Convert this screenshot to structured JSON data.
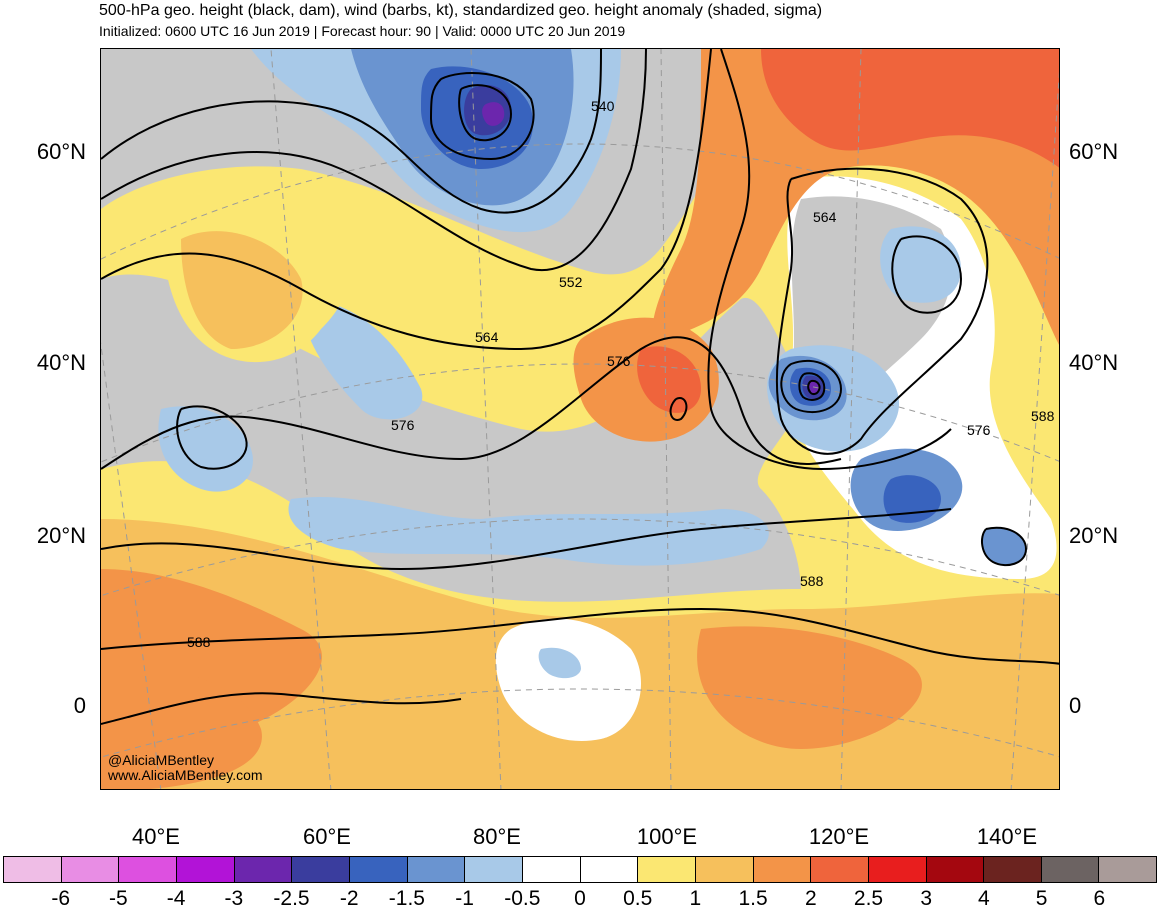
{
  "title": "500-hPa geo. height (black, dam), wind (barbs, kt), standardized geo. height anomaly (shaded, sigma)",
  "subtitle": "Initialized: 0600 UTC 16 Jun 2019 | Forecast hour: 90 | Valid: 0000 UTC 20 Jun 2019",
  "lat_labels": [
    "60°N",
    "40°N",
    "20°N",
    "0"
  ],
  "lon_labels": [
    "40°E",
    "60°E",
    "80°E",
    "100°E",
    "120°E",
    "140°E"
  ],
  "contour_labels": [
    "540",
    "552",
    "564",
    "564",
    "576",
    "576",
    "576",
    "588",
    "588",
    "588"
  ],
  "credit": [
    "@AliciaMBentley",
    "www.AliciaMBentley.com"
  ],
  "colorbar": {
    "colors": [
      "#efbde6",
      "#e88de4",
      "#dd50e0",
      "#b213d7",
      "#6c26ad",
      "#3a3d9e",
      "#3863be",
      "#6a94d0",
      "#a8c9e8",
      "#ffffff",
      "#ffffff",
      "#fbe772",
      "#f6c05c",
      "#f39448",
      "#ef643c",
      "#e81e1e",
      "#a4070f",
      "#6b231f",
      "#6c6362",
      "#a99b99"
    ],
    "labels": [
      "-6",
      "-5",
      "-4",
      "-3",
      "-2.5",
      "-2",
      "-1.5",
      "-1",
      "-0.5",
      "0",
      "0.5",
      "1",
      "1.5",
      "2",
      "2.5",
      "3",
      "4",
      "5",
      "6"
    ]
  },
  "palette": {
    "gray": "#c8c8c8",
    "blue1": "#a8c9e8",
    "blue2": "#6a94d0",
    "blue3": "#3863be",
    "blue4": "#3a3d9e",
    "purple": "#6c26ad",
    "yellow": "#fbe772",
    "lorange": "#f6c05c",
    "orange": "#f39448",
    "dorange": "#ef643c",
    "white": "#ffffff"
  }
}
